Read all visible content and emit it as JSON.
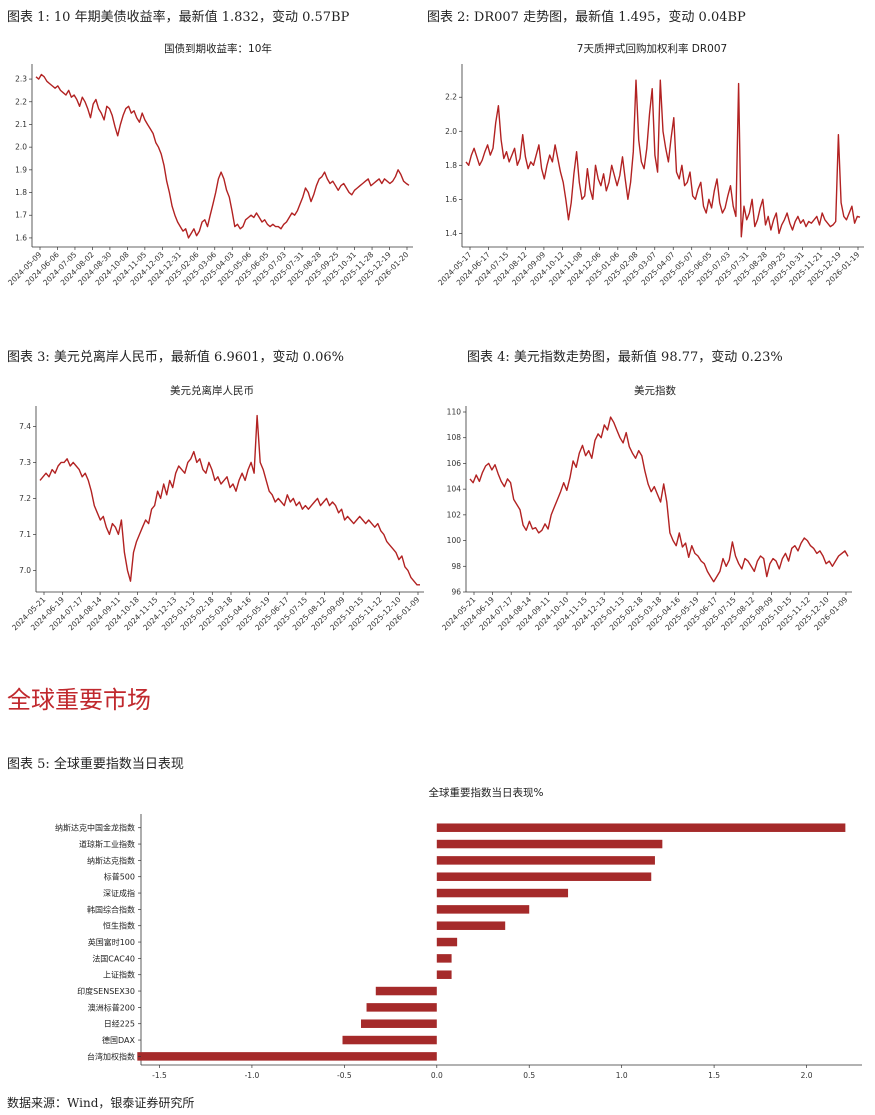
{
  "captions": {
    "fig1": "图表 1: 10 年期美债收益率，最新值 1.832，变动 0.57BP",
    "fig2": "图表 2: DR007 走势图，最新值 1.495，变动 0.04BP",
    "fig3": "图表 3:  美元兑离岸人民币，最新值 6.9601，变动 0.06%",
    "fig4": "图表 4:  美元指数走势图，最新值 98.77，变动 0.23%",
    "fig5": "图表 5:  全球重要指数当日表现"
  },
  "section_title": "全球重要市场",
  "source": "数据来源：Wind，银泰证券研究所",
  "colors": {
    "series": "#b22222",
    "bars": "#a52a2a",
    "section": "#c0282d"
  },
  "chart_data": [
    {
      "type": "line",
      "title": "国债到期收益率：10年",
      "ylim": [
        1.56,
        2.34
      ],
      "yticks": [
        "1.6",
        "1.7",
        "1.8",
        "1.9",
        "2.0",
        "2.1",
        "2.2",
        "2.3"
      ],
      "xticks": [
        "2024-05-09",
        "2024-06-06",
        "2024-07-05",
        "2024-08-02",
        "2024-08-30",
        "2024-10-08",
        "2024-11-05",
        "2024-12-03",
        "2024-12-31",
        "2025-02-06",
        "2025-03-06",
        "2025-04-03",
        "2025-05-06",
        "2025-06-05",
        "2025-07-03",
        "2025-07-31",
        "2025-08-28",
        "2025-09-25",
        "2025-10-31",
        "2025-11-28",
        "2025-12-19",
        "2026-01-20"
      ],
      "values": [
        2.31,
        2.3,
        2.32,
        2.31,
        2.29,
        2.28,
        2.27,
        2.26,
        2.27,
        2.25,
        2.24,
        2.23,
        2.25,
        2.22,
        2.23,
        2.21,
        2.18,
        2.22,
        2.2,
        2.17,
        2.13,
        2.19,
        2.21,
        2.17,
        2.15,
        2.12,
        2.18,
        2.17,
        2.14,
        2.09,
        2.05,
        2.1,
        2.14,
        2.17,
        2.18,
        2.15,
        2.16,
        2.13,
        2.11,
        2.15,
        2.12,
        2.1,
        2.08,
        2.06,
        2.02,
        2.0,
        1.97,
        1.92,
        1.85,
        1.8,
        1.74,
        1.7,
        1.67,
        1.65,
        1.63,
        1.64,
        1.6,
        1.62,
        1.64,
        1.61,
        1.63,
        1.67,
        1.68,
        1.65,
        1.7,
        1.75,
        1.8,
        1.86,
        1.89,
        1.86,
        1.81,
        1.78,
        1.72,
        1.65,
        1.66,
        1.64,
        1.65,
        1.68,
        1.69,
        1.7,
        1.69,
        1.71,
        1.69,
        1.67,
        1.68,
        1.66,
        1.65,
        1.66,
        1.65,
        1.65,
        1.64,
        1.66,
        1.67,
        1.69,
        1.71,
        1.7,
        1.72,
        1.75,
        1.78,
        1.82,
        1.8,
        1.76,
        1.79,
        1.83,
        1.86,
        1.87,
        1.89,
        1.86,
        1.84,
        1.85,
        1.83,
        1.81,
        1.83,
        1.84,
        1.82,
        1.8,
        1.79,
        1.81,
        1.82,
        1.83,
        1.84,
        1.85,
        1.86,
        1.83,
        1.84,
        1.85,
        1.86,
        1.84,
        1.86,
        1.85,
        1.84,
        1.85,
        1.87,
        1.9,
        1.88,
        1.85,
        1.84,
        1.832
      ]
    },
    {
      "type": "line",
      "title": "7天质押式回购加权利率 DR007",
      "ylim": [
        1.32,
        2.36
      ],
      "yticks": [
        "1.4",
        "1.6",
        "1.8",
        "2.0",
        "2.2"
      ],
      "xticks": [
        "2024-05-17",
        "2024-06-17",
        "2024-07-15",
        "2024-08-12",
        "2024-09-09",
        "2024-10-12",
        "2024-11-08",
        "2024-12-06",
        "2025-01-06",
        "2025-02-08",
        "2025-03-07",
        "2025-04-07",
        "2025-05-07",
        "2025-06-05",
        "2025-07-03",
        "2025-07-31",
        "2025-08-28",
        "2025-09-25",
        "2025-10-31",
        "2025-11-21",
        "2025-12-19",
        "2026-01-19"
      ],
      "values": [
        1.82,
        1.8,
        1.86,
        1.9,
        1.85,
        1.8,
        1.83,
        1.88,
        1.92,
        1.86,
        1.9,
        2.05,
        2.15,
        1.95,
        1.84,
        1.88,
        1.82,
        1.86,
        1.9,
        1.8,
        1.84,
        1.98,
        1.85,
        1.78,
        1.82,
        1.8,
        1.86,
        1.92,
        1.78,
        1.72,
        1.8,
        1.86,
        1.82,
        1.92,
        1.84,
        1.76,
        1.7,
        1.6,
        1.48,
        1.58,
        1.75,
        1.88,
        1.7,
        1.6,
        1.62,
        1.78,
        1.66,
        1.6,
        1.8,
        1.72,
        1.68,
        1.75,
        1.65,
        1.7,
        1.8,
        1.74,
        1.68,
        1.74,
        1.85,
        1.72,
        1.6,
        1.7,
        1.88,
        2.3,
        1.95,
        1.82,
        1.78,
        1.9,
        2.1,
        2.25,
        1.86,
        1.76,
        2.3,
        2.0,
        1.9,
        1.82,
        1.96,
        2.08,
        1.76,
        1.72,
        1.8,
        1.68,
        1.7,
        1.76,
        1.62,
        1.6,
        1.66,
        1.7,
        1.56,
        1.52,
        1.6,
        1.55,
        1.65,
        1.72,
        1.58,
        1.52,
        1.55,
        1.62,
        1.68,
        1.56,
        1.5,
        2.28,
        1.38,
        1.56,
        1.48,
        1.52,
        1.6,
        1.44,
        1.48,
        1.55,
        1.6,
        1.45,
        1.5,
        1.42,
        1.48,
        1.52,
        1.4,
        1.45,
        1.48,
        1.52,
        1.46,
        1.42,
        1.47,
        1.5,
        1.46,
        1.48,
        1.44,
        1.47,
        1.46,
        1.48,
        1.5,
        1.45,
        1.52,
        1.48,
        1.46,
        1.44,
        1.45,
        1.47,
        1.98,
        1.58,
        1.5,
        1.48,
        1.52,
        1.56,
        1.46,
        1.5,
        1.495
      ]
    },
    {
      "type": "line",
      "title": "美元兑离岸人民币",
      "ylim": [
        6.94,
        7.44
      ],
      "yticks": [
        "7.0",
        "7.1",
        "7.2",
        "7.3",
        "7.4"
      ],
      "xticks": [
        "2024-05-21",
        "2024-06-19",
        "2024-07-17",
        "2024-08-14",
        "2024-09-11",
        "2024-10-18",
        "2024-11-15",
        "2024-12-13",
        "2025-01-13",
        "2025-02-18",
        "2025-03-18",
        "2025-04-16",
        "2025-05-19",
        "2025-06-17",
        "2025-07-15",
        "2025-08-12",
        "2025-09-09",
        "2025-10-15",
        "2025-11-12",
        "2025-12-10",
        "2026-01-09"
      ],
      "values": [
        7.25,
        7.26,
        7.27,
        7.26,
        7.28,
        7.27,
        7.29,
        7.3,
        7.3,
        7.31,
        7.29,
        7.3,
        7.29,
        7.28,
        7.26,
        7.27,
        7.25,
        7.22,
        7.18,
        7.16,
        7.14,
        7.15,
        7.12,
        7.1,
        7.13,
        7.12,
        7.1,
        7.14,
        7.05,
        7.0,
        6.97,
        7.05,
        7.08,
        7.1,
        7.12,
        7.14,
        7.13,
        7.17,
        7.18,
        7.22,
        7.2,
        7.24,
        7.21,
        7.25,
        7.23,
        7.27,
        7.29,
        7.28,
        7.27,
        7.3,
        7.31,
        7.33,
        7.3,
        7.31,
        7.28,
        7.27,
        7.3,
        7.28,
        7.25,
        7.26,
        7.24,
        7.25,
        7.26,
        7.23,
        7.24,
        7.22,
        7.25,
        7.27,
        7.25,
        7.28,
        7.3,
        7.27,
        7.43,
        7.3,
        7.28,
        7.25,
        7.22,
        7.21,
        7.19,
        7.2,
        7.19,
        7.18,
        7.21,
        7.19,
        7.2,
        7.18,
        7.19,
        7.17,
        7.18,
        7.17,
        7.18,
        7.19,
        7.2,
        7.18,
        7.19,
        7.2,
        7.18,
        7.19,
        7.18,
        7.16,
        7.17,
        7.14,
        7.15,
        7.14,
        7.13,
        7.14,
        7.15,
        7.14,
        7.13,
        7.14,
        7.13,
        7.12,
        7.13,
        7.11,
        7.1,
        7.08,
        7.07,
        7.06,
        7.05,
        7.03,
        7.04,
        7.01,
        7.0,
        6.98,
        6.97,
        6.96,
        6.9601
      ]
    },
    {
      "type": "line",
      "title": "美元指数",
      "ylim": [
        96,
        110
      ],
      "yticks": [
        "96",
        "98",
        "100",
        "102",
        "104",
        "106",
        "108",
        "110"
      ],
      "xticks": [
        "2024-05-21",
        "2024-06-19",
        "2024-07-17",
        "2024-08-14",
        "2024-09-11",
        "2024-10-10",
        "2024-11-15",
        "2024-12-13",
        "2025-01-13",
        "2025-02-18",
        "2025-03-18",
        "2025-04-16",
        "2025-05-19",
        "2025-06-17",
        "2025-07-15",
        "2025-08-12",
        "2025-09-09",
        "2025-10-15",
        "2025-11-12",
        "2025-12-10",
        "2026-01-09"
      ],
      "values": [
        104.8,
        104.5,
        105.1,
        104.6,
        105.3,
        105.8,
        106.0,
        105.5,
        105.9,
        105.2,
        104.6,
        104.2,
        104.8,
        104.5,
        103.2,
        102.8,
        102.4,
        101.2,
        100.8,
        101.5,
        100.9,
        101.0,
        100.6,
        100.8,
        101.3,
        100.9,
        102.0,
        102.6,
        103.2,
        103.8,
        104.5,
        103.9,
        104.9,
        106.2,
        105.7,
        106.8,
        107.4,
        106.6,
        107.0,
        106.4,
        107.8,
        108.3,
        108.0,
        109.0,
        108.6,
        109.6,
        109.2,
        108.6,
        108.0,
        107.6,
        108.4,
        107.3,
        106.8,
        106.4,
        107.0,
        106.6,
        105.4,
        104.4,
        103.8,
        104.2,
        103.6,
        103.0,
        104.4,
        103.0,
        100.6,
        100.0,
        99.6,
        100.6,
        99.5,
        99.8,
        98.7,
        99.6,
        99.0,
        98.8,
        98.4,
        98.2,
        97.6,
        97.2,
        96.8,
        97.2,
        97.6,
        98.6,
        98.0,
        98.5,
        99.9,
        98.8,
        98.2,
        97.8,
        98.6,
        98.4,
        98.0,
        97.6,
        98.4,
        98.8,
        98.6,
        97.2,
        98.2,
        98.6,
        98.4,
        97.8,
        98.6,
        99.0,
        98.4,
        99.4,
        99.6,
        99.2,
        99.8,
        100.2,
        100.0,
        99.6,
        99.4,
        99.0,
        99.2,
        98.8,
        98.2,
        98.4,
        98.0,
        98.4,
        98.8,
        99.0,
        99.2,
        98.77
      ]
    },
    {
      "type": "bar",
      "orientation": "horizontal",
      "title": "全球重要指数当日表现%",
      "categories": [
        "纳斯达克中国金龙指数",
        "道琼斯工业指数",
        "纳斯达克指数",
        "标普500",
        "深证成指",
        "韩国综合指数",
        "恒生指数",
        "英国富时100",
        "法国CAC40",
        "上证指数",
        "印度SENSEX30",
        "澳洲标普200",
        "日经225",
        "德国DAX",
        "台湾加权指数"
      ],
      "values": [
        2.21,
        1.22,
        1.18,
        1.16,
        0.71,
        0.5,
        0.37,
        0.11,
        0.08,
        0.08,
        -0.33,
        -0.38,
        -0.41,
        -0.51,
        -1.62
      ],
      "xlim": [
        -1.6,
        2.3
      ],
      "xticks": [
        -1.5,
        -1.0,
        -0.5,
        0.0,
        0.5,
        1.0,
        1.5,
        2.0
      ],
      "xtick_labels": [
        "-1.5",
        "-1.0",
        "-0.5",
        "0.0",
        "0.5",
        "1.0",
        "1.5",
        "2.0"
      ]
    }
  ]
}
